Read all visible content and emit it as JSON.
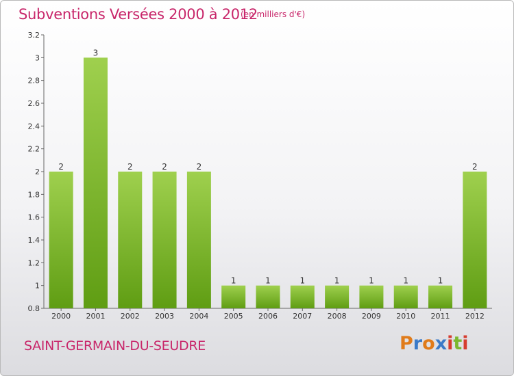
{
  "title": "Subventions Versées 2000 à 2012",
  "subtitle": "(en milliers d'€)",
  "commune": "SAINT-GERMAIN-DU-SEUDRE",
  "logo": {
    "text": "Proxiti",
    "colors": [
      "#e07b1a",
      "#3a7ac8",
      "#e07b1a",
      "#3a7ac8",
      "#d63c2f",
      "#7cb82f",
      "#d63c2f"
    ]
  },
  "colors": {
    "bar_top": "#9fd04e",
    "bar_bottom": "#5f9d13",
    "accent": "#c8266a"
  },
  "chart_data": {
    "type": "bar",
    "title": "Subventions Versées 2000 à 2012",
    "subtitle": "(en milliers d'€)",
    "xlabel": "",
    "ylabel": "",
    "categories": [
      "2000",
      "2001",
      "2002",
      "2003",
      "2004",
      "2005",
      "2006",
      "2007",
      "2008",
      "2009",
      "2010",
      "2011",
      "2012"
    ],
    "values": [
      2,
      3,
      2,
      2,
      2,
      1,
      1,
      1,
      1,
      1,
      1,
      1,
      2
    ],
    "data_labels": [
      "2",
      "3",
      "2",
      "2",
      "2",
      "1",
      "1",
      "1",
      "1",
      "1",
      "1",
      "1",
      "2"
    ],
    "ylim": [
      0.8,
      3.2
    ],
    "yticks": [
      0.8,
      1,
      1.2,
      1.4,
      1.6,
      1.8,
      2,
      2.2,
      2.4,
      2.6,
      2.8,
      3,
      3.2
    ],
    "ytick_labels": [
      "0.8",
      "1",
      "1.2",
      "1.4",
      "1.6",
      "1.8",
      "2",
      "2.2",
      "2.4",
      "2.6",
      "2.8",
      "3",
      "3.2"
    ],
    "grid": false,
    "legend": "none"
  }
}
